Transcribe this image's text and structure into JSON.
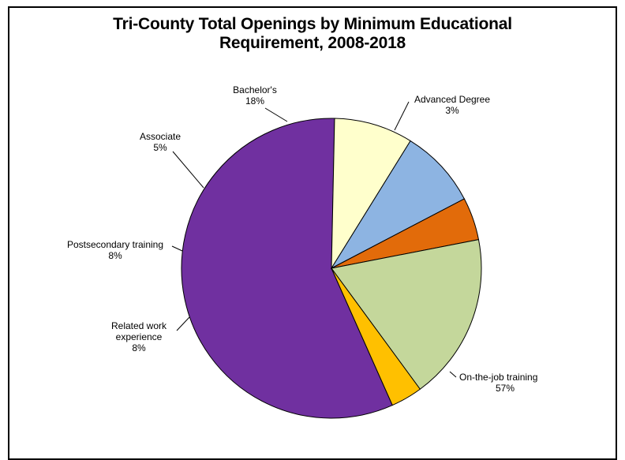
{
  "chart_data": {
    "type": "pie",
    "title_lines": [
      "Tri-County Total Openings by Minimum Educational",
      "Requirement, 2008-2018"
    ],
    "slices": [
      {
        "name": "On-the-job training",
        "label_pct": "57%",
        "value": 57.0,
        "color": "#7030A0"
      },
      {
        "name": "Related work experience",
        "label_lines": [
          "Related work",
          "experience"
        ],
        "label_pct": "8%",
        "value": 8.5,
        "color": "#FFFFCC"
      },
      {
        "name": "Postsecondary training",
        "label_pct": "8%",
        "value": 8.5,
        "color": "#8DB4E2"
      },
      {
        "name": "Associate",
        "label_pct": "5%",
        "value": 4.6,
        "color": "#E26B0A"
      },
      {
        "name": "Bachelor's",
        "label_pct": "18%",
        "value": 18.0,
        "color": "#C4D79B"
      },
      {
        "name": "Advanced Degree",
        "label_pct": "3%",
        "value": 3.4,
        "color": "#FFC000"
      }
    ],
    "start_angle_deg": 66,
    "direction": "clockwise",
    "legend": "none"
  }
}
